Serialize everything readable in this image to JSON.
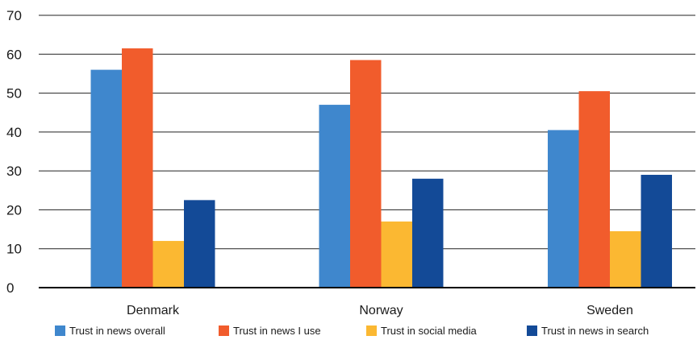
{
  "chart_data": {
    "type": "bar",
    "categories": [
      "Denmark",
      "Norway",
      "Sweden"
    ],
    "series": [
      {
        "name": "Trust in news overall",
        "values": [
          56,
          47,
          40.5
        ],
        "color": "#3f87cd"
      },
      {
        "name": "Trust in news I use",
        "values": [
          61.5,
          58.5,
          50.5
        ],
        "color": "#f15c2c"
      },
      {
        "name": "Trust in social media",
        "values": [
          12,
          17,
          14.5
        ],
        "color": "#fbb832"
      },
      {
        "name": "Trust in news in search",
        "values": [
          22.5,
          28,
          29
        ],
        "color": "#134a97"
      }
    ],
    "ylim": [
      0,
      70
    ],
    "yticks": [
      0,
      10,
      20,
      30,
      40,
      50,
      60,
      70
    ],
    "grid": true,
    "legend_position": "bottom"
  }
}
